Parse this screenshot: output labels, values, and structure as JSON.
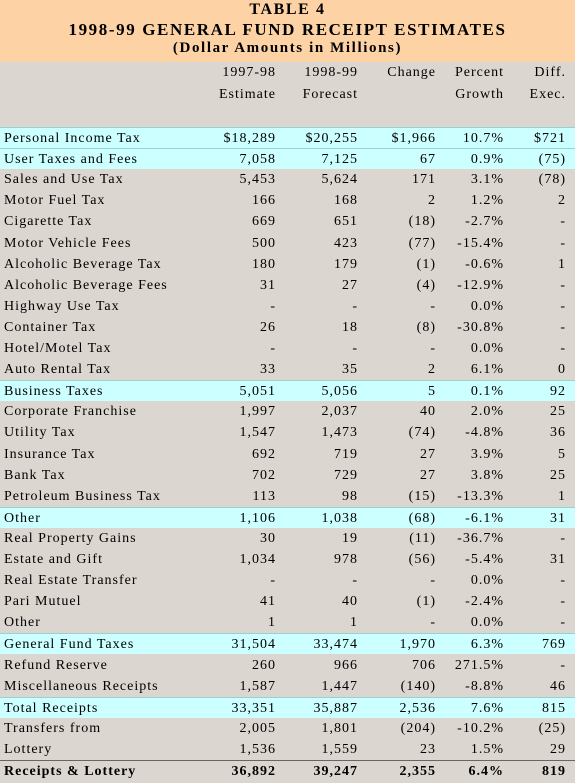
{
  "header": {
    "table_number": "TABLE 4",
    "title": "1998-99 GENERAL FUND RECEIPT ESTIMATES",
    "subtitle": "(Dollar Amounts in Millions)"
  },
  "table": {
    "columns": [
      [
        "1997-98",
        "Estimate"
      ],
      [
        "1998-99",
        "Forecast"
      ],
      [
        "Change"
      ],
      [
        "Percent",
        "Growth"
      ],
      [
        "Diff.",
        "Exec."
      ]
    ],
    "rows": [
      {
        "style": "highlight",
        "cells": [
          "Personal Income Tax",
          "$18,289",
          "$20,255",
          "$1,966",
          "10.7%",
          "$721"
        ]
      },
      {
        "style": "highlight",
        "cells": [
          "User Taxes and Fees",
          "7,058",
          "7,125",
          "67",
          "0.9%",
          "(75)"
        ]
      },
      {
        "cells": [
          "Sales and Use Tax",
          "5,453",
          "5,624",
          "171",
          "3.1%",
          "(78)"
        ]
      },
      {
        "cells": [
          "Motor Fuel Tax",
          "166",
          "168",
          "2",
          "1.2%",
          "2"
        ]
      },
      {
        "cells": [
          "Cigarette Tax",
          "669",
          "651",
          "(18)",
          "-2.7%",
          "-"
        ]
      },
      {
        "cells": [
          "Motor Vehicle Fees",
          "500",
          "423",
          "(77)",
          "-15.4%",
          "-"
        ]
      },
      {
        "cells": [
          "Alcoholic Beverage Tax",
          "180",
          "179",
          "(1)",
          "-0.6%",
          "1"
        ]
      },
      {
        "cells": [
          "Alcoholic Beverage Fees",
          "31",
          "27",
          "(4)",
          "-12.9%",
          "-"
        ]
      },
      {
        "cells": [
          "Highway Use Tax",
          "-",
          "-",
          "-",
          "0.0%",
          "-"
        ]
      },
      {
        "cells": [
          "Container Tax",
          "26",
          "18",
          "(8)",
          "-30.8%",
          "-"
        ]
      },
      {
        "cells": [
          "Hotel/Motel Tax",
          "-",
          "-",
          "-",
          "0.0%",
          "-"
        ]
      },
      {
        "cells": [
          "Auto Rental Tax",
          "33",
          "35",
          "2",
          "6.1%",
          "0"
        ]
      },
      {
        "style": "highlight",
        "cells": [
          "Business Taxes",
          "5,051",
          "5,056",
          "5",
          "0.1%",
          "92"
        ]
      },
      {
        "cells": [
          "Corporate Franchise",
          "1,997",
          "2,037",
          "40",
          "2.0%",
          "25"
        ]
      },
      {
        "cells": [
          "Utility Tax",
          "1,547",
          "1,473",
          "(74)",
          "-4.8%",
          "36"
        ]
      },
      {
        "cells": [
          "Insurance Tax",
          "692",
          "719",
          "27",
          "3.9%",
          "5"
        ]
      },
      {
        "cells": [
          "Bank Tax",
          "702",
          "729",
          "27",
          "3.8%",
          "25"
        ]
      },
      {
        "cells": [
          "Petroleum Business Tax",
          "113",
          "98",
          "(15)",
          "-13.3%",
          "1"
        ]
      },
      {
        "style": "highlight",
        "cells": [
          "Other",
          "1,106",
          "1,038",
          "(68)",
          "-6.1%",
          "31"
        ]
      },
      {
        "cells": [
          "Real Property Gains",
          "30",
          "19",
          "(11)",
          "-36.7%",
          "-"
        ]
      },
      {
        "cells": [
          "Estate and Gift",
          "1,034",
          "978",
          "(56)",
          "-5.4%",
          "31"
        ]
      },
      {
        "cells": [
          "Real Estate Transfer",
          "-",
          "-",
          "-",
          "0.0%",
          "-"
        ]
      },
      {
        "cells": [
          "Pari Mutuel",
          "41",
          "40",
          "(1)",
          "-2.4%",
          "-"
        ]
      },
      {
        "cells": [
          "Other",
          "1",
          "1",
          "-",
          "0.0%",
          "-"
        ]
      },
      {
        "style": "highlight",
        "cells": [
          "General Fund Taxes",
          "31,504",
          "33,474",
          "1,970",
          "6.3%",
          "769"
        ]
      },
      {
        "cells": [
          "Refund Reserve",
          "260",
          "966",
          "706",
          "271.5%",
          "-"
        ]
      },
      {
        "cells": [
          "Miscellaneous Receipts",
          "1,587",
          "1,447",
          "(140)",
          "-8.8%",
          "46"
        ]
      },
      {
        "style": "highlight",
        "cells": [
          "Total Receipts",
          "33,351",
          "35,887",
          "2,536",
          "7.6%",
          "815"
        ]
      },
      {
        "cells": [
          "Transfers from",
          "2,005",
          "1,801",
          "(204)",
          "-10.2%",
          "(25)"
        ]
      },
      {
        "cells": [
          "Lottery",
          "1,536",
          "1,559",
          "23",
          "1.5%",
          "29"
        ]
      },
      {
        "style": "total",
        "cells": [
          "Receipts & Lottery",
          "36,892",
          "39,247",
          "2,355",
          "6.4%",
          "819"
        ]
      }
    ]
  }
}
